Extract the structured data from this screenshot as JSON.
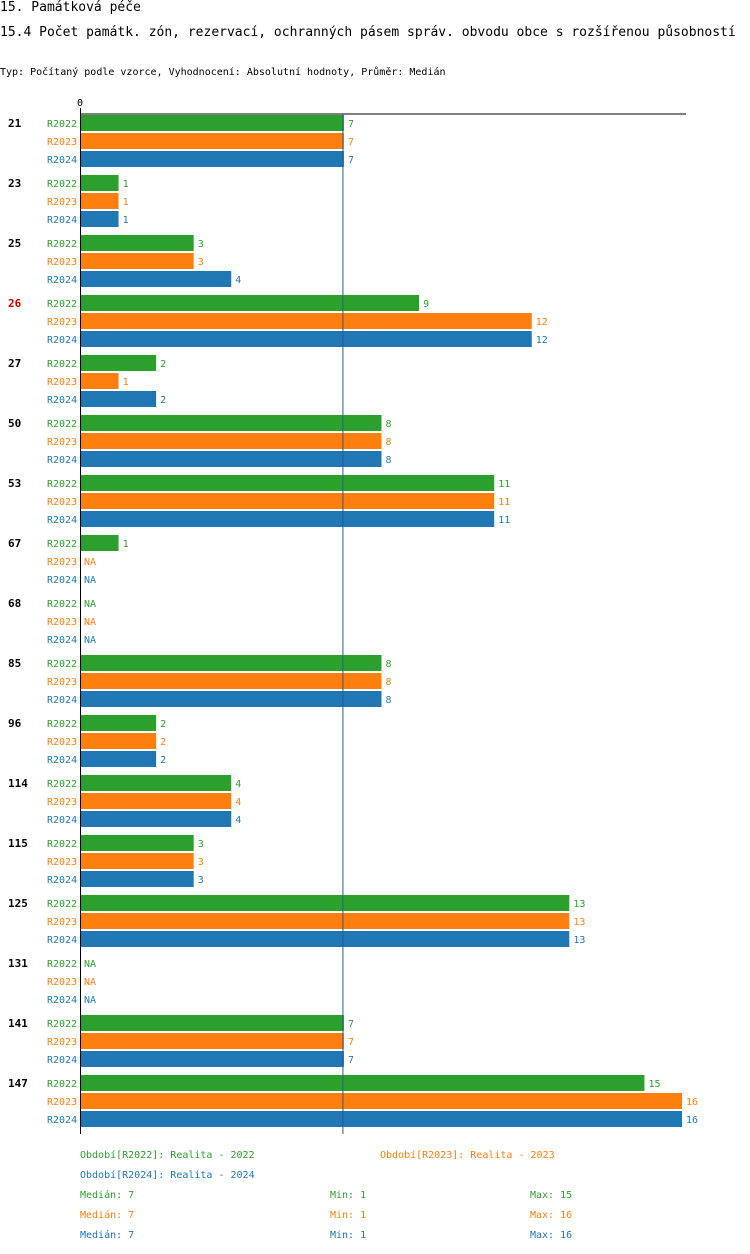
{
  "title": "15. Památková péče",
  "subtitle": "15.4 Počet památk. zón, rezervací, ochranných pásem správ. obvodu obce s rozšířenou působností",
  "description": "Typ: Počítaný podle vzorce, Vyhodnocení: Absolutní hodnoty, Průměr: Medián",
  "colors": {
    "R2022": "#2ca02c",
    "R2023": "#ff7f0e",
    "R2024": "#1f77b4",
    "highlight": "#cc0000"
  },
  "chart_data": {
    "type": "bar",
    "orientation": "horizontal",
    "axis_zero_label": "0",
    "xlim": [
      0,
      16
    ],
    "median_line": 7,
    "highlighted_category": "26",
    "categories": [
      "21",
      "23",
      "25",
      "26",
      "27",
      "50",
      "53",
      "67",
      "68",
      "85",
      "96",
      "114",
      "115",
      "125",
      "131",
      "141",
      "147"
    ],
    "series": [
      {
        "name": "R2022",
        "values": [
          7,
          1,
          3,
          9,
          2,
          8,
          11,
          1,
          null,
          8,
          2,
          4,
          3,
          13,
          null,
          7,
          15
        ]
      },
      {
        "name": "R2023",
        "values": [
          7,
          1,
          3,
          12,
          1,
          8,
          11,
          null,
          null,
          8,
          2,
          4,
          3,
          13,
          null,
          7,
          16
        ]
      },
      {
        "name": "R2024",
        "values": [
          7,
          1,
          4,
          12,
          2,
          8,
          11,
          null,
          null,
          8,
          2,
          4,
          3,
          13,
          null,
          7,
          16
        ]
      }
    ],
    "na_label": "NA"
  },
  "legend": {
    "r2022": "Období[R2022]: Realita - 2022",
    "r2023": "Období[R2023]: Realita - 2023",
    "r2024": "Období[R2024]: Realita - 2024"
  },
  "stats": [
    {
      "series": "R2022",
      "median": "Medián: 7",
      "min": "Min: 1",
      "max": "Max: 15"
    },
    {
      "series": "R2023",
      "median": "Medián: 7",
      "min": "Min: 1",
      "max": "Max: 16"
    },
    {
      "series": "R2024",
      "median": "Medián: 7",
      "min": "Min: 1",
      "max": "Max: 16"
    }
  ]
}
